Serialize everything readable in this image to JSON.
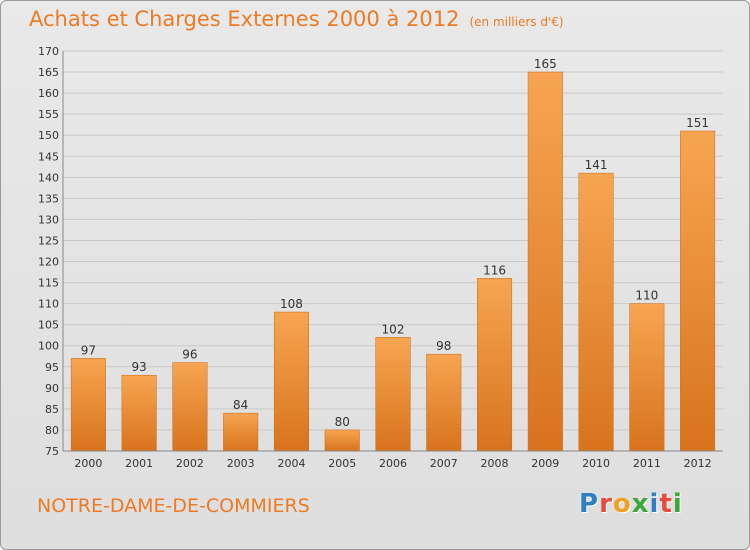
{
  "header": {
    "title": "Achats et Charges Externes 2000 à 2012",
    "subtitle": "(en milliers d'€)"
  },
  "footer": {
    "commune": "NOTRE-DAME-DE-COMMIERS",
    "logo_letters": [
      "P",
      "r",
      "o",
      "x",
      "i",
      "t",
      "i"
    ],
    "logo_colors": [
      "#2d7fc1",
      "#e74c3c",
      "#f0a020",
      "#3aa83a",
      "#2d7fc1",
      "#e74c3c",
      "#3aa83a"
    ]
  },
  "colors": {
    "bar_light": "#f7a552",
    "bar_dark": "#d8731c",
    "text": "#ee7a24",
    "grid": "#c9c9c9",
    "axis_text": "#333333"
  },
  "chart_data": {
    "type": "bar",
    "categories": [
      "2000",
      "2001",
      "2002",
      "2003",
      "2004",
      "2005",
      "2006",
      "2007",
      "2008",
      "2009",
      "2010",
      "2011",
      "2012"
    ],
    "values": [
      97,
      93,
      96,
      84,
      108,
      80,
      102,
      98,
      116,
      165,
      141,
      110,
      151
    ],
    "title": "Achats et Charges Externes 2000 à 2012",
    "subtitle": "(en milliers d'€)",
    "xlabel": "",
    "ylabel": "",
    "ylim": [
      75,
      170
    ],
    "yticks": [
      75,
      80,
      85,
      90,
      95,
      100,
      105,
      110,
      115,
      120,
      125,
      130,
      135,
      140,
      145,
      150,
      155,
      160,
      165,
      170
    ],
    "grid": true,
    "data_labels": true
  }
}
